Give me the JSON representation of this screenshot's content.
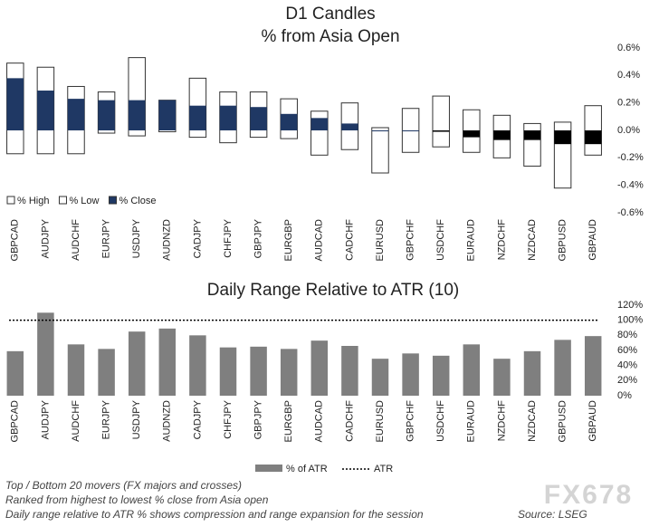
{
  "chart_data": [
    {
      "type": "candle",
      "title": "D1 Candles",
      "subtitle": "% from Asia Open",
      "categories": [
        "GBPCAD",
        "AUDJPY",
        "AUDCHF",
        "EURJPY",
        "USDJPY",
        "AUDNZD",
        "CADJPY",
        "CHFJPY",
        "GBPJPY",
        "EURGBP",
        "AUDCAD",
        "CADCHF",
        "EURUSD",
        "GBPCHF",
        "USDCHF",
        "EURAUD",
        "NZDCHF",
        "NZDCAD",
        "GBPUSD",
        "GBPAUD"
      ],
      "series": [
        {
          "name": "% High",
          "color": "#ffffff",
          "values": [
            0.49,
            0.46,
            0.32,
            0.28,
            0.53,
            0.22,
            0.38,
            0.28,
            0.28,
            0.23,
            0.14,
            0.2,
            0.02,
            0.16,
            0.25,
            0.15,
            0.11,
            0.05,
            0.06,
            0.18
          ]
        },
        {
          "name": "% Low",
          "color": "#ffffff",
          "values": [
            -0.17,
            -0.17,
            -0.17,
            -0.02,
            -0.04,
            -0.01,
            -0.05,
            -0.09,
            -0.05,
            -0.06,
            -0.18,
            -0.14,
            -0.31,
            -0.16,
            -0.12,
            -0.16,
            -0.2,
            -0.26,
            -0.42,
            -0.18
          ]
        },
        {
          "name": "% Close",
          "color": "#1f3864",
          "negative_color": "#000000",
          "values": [
            0.38,
            0.29,
            0.23,
            0.22,
            0.22,
            0.22,
            0.18,
            0.18,
            0.17,
            0.12,
            0.09,
            0.05,
            0.0,
            0.0,
            -0.01,
            -0.05,
            -0.07,
            -0.07,
            -0.1,
            -0.1
          ]
        }
      ],
      "ylim": [
        -0.6,
        0.6
      ],
      "yticks": [
        {
          "value": 0.6,
          "label": "0.6%"
        },
        {
          "value": 0.4,
          "label": "0.4%"
        },
        {
          "value": 0.2,
          "label": "0.2%"
        },
        {
          "value": 0,
          "label": "0.0%"
        },
        {
          "value": -0.2,
          "label": "-0.2%"
        },
        {
          "value": -0.4,
          "label": "-0.4%"
        },
        {
          "value": -0.6,
          "label": "-0.6%"
        }
      ]
    },
    {
      "type": "bar",
      "title": "Daily Range Relative to ATR (10)",
      "categories": [
        "GBPCAD",
        "AUDJPY",
        "AUDCHF",
        "EURJPY",
        "USDJPY",
        "AUDNZD",
        "CADJPY",
        "CHFJPY",
        "GBPJPY",
        "EURGBP",
        "AUDCAD",
        "CADCHF",
        "EURUSD",
        "GBPCHF",
        "USDCHF",
        "EURAUD",
        "NZDCHF",
        "NZDCAD",
        "GBPUSD",
        "GBPAUD"
      ],
      "series": [
        {
          "name": "% of ATR",
          "color": "#7f7f7f",
          "values": [
            59,
            110,
            68,
            62,
            85,
            89,
            80,
            64,
            65,
            62,
            73,
            66,
            49,
            56,
            53,
            68,
            49,
            59,
            74,
            79
          ]
        }
      ],
      "reference_line": {
        "name": "ATR",
        "value": 100
      },
      "ylim": [
        0,
        120
      ],
      "yticks": [
        {
          "value": 120,
          "label": "120%"
        },
        {
          "value": 100,
          "label": "100%"
        },
        {
          "value": 80,
          "label": "80%"
        },
        {
          "value": 60,
          "label": "60%"
        },
        {
          "value": 40,
          "label": "40%"
        },
        {
          "value": 20,
          "label": "20%"
        },
        {
          "value": 0,
          "label": "0%"
        }
      ]
    }
  ],
  "footer": {
    "lines": [
      "Top / Bottom 20 movers (FX majors and crosses)",
      "Ranked from highest to lowest % close from Asia open",
      "Daily range relative to ATR % shows compression and range expansion for the session"
    ],
    "source": "Source: LSEG",
    "watermark": "FX678"
  }
}
